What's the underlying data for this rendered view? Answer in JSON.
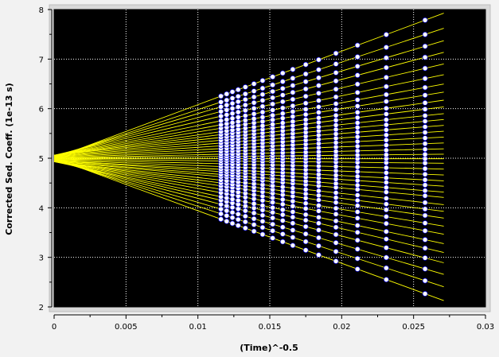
{
  "chart_data": {
    "type": "scatter",
    "xlabel": "(Time)^-0.5",
    "ylabel": "Corrected Sed. Coeff. (1e-13 s)",
    "xlim": [
      0,
      0.03
    ],
    "ylim": [
      2,
      8
    ],
    "x_ticks": [
      {
        "v": 0,
        "label": "0"
      },
      {
        "v": 0.005,
        "label": "0.005"
      },
      {
        "v": 0.01,
        "label": "0.01"
      },
      {
        "v": 0.015,
        "label": "0.015"
      },
      {
        "v": 0.02,
        "label": "0.02"
      },
      {
        "v": 0.025,
        "label": "0.025"
      },
      {
        "v": 0.03,
        "label": "0.03"
      }
    ],
    "y_ticks": [
      {
        "v": 2,
        "label": "2"
      },
      {
        "v": 3,
        "label": "3"
      },
      {
        "v": 4,
        "label": "4"
      },
      {
        "v": 5,
        "label": "5"
      },
      {
        "v": 6,
        "label": "6"
      },
      {
        "v": 7,
        "label": "7"
      },
      {
        "v": 8,
        "label": "8"
      }
    ],
    "grid": true,
    "background_color": "#000000",
    "line_color": "#ffff00",
    "point_fill_color": "#ffffff",
    "point_edge_color": "#0000ff",
    "scan_x": [
      0.0116,
      0.012,
      0.0124,
      0.0128,
      0.0133,
      0.0139,
      0.0145,
      0.0152,
      0.0159,
      0.0166,
      0.0175,
      0.0184,
      0.0196,
      0.0211,
      0.0231,
      0.0258
    ],
    "fit_x_end": 0.0271,
    "boundary_fractions": [
      {
        "intercept": 5.0,
        "slope": -106
      },
      {
        "intercept": 4.98,
        "slope": -95
      },
      {
        "intercept": 4.96,
        "slope": -85
      },
      {
        "intercept": 4.95,
        "slope": -76
      },
      {
        "intercept": 4.94,
        "slope": -68
      },
      {
        "intercept": 4.93,
        "slope": -61
      },
      {
        "intercept": 4.93,
        "slope": -54
      },
      {
        "intercept": 4.93,
        "slope": -48
      },
      {
        "intercept": 4.93,
        "slope": -42
      },
      {
        "intercept": 4.93,
        "slope": -37
      },
      {
        "intercept": 4.93,
        "slope": -32
      },
      {
        "intercept": 4.94,
        "slope": -27
      },
      {
        "intercept": 4.94,
        "slope": -23
      },
      {
        "intercept": 4.95,
        "slope": -19
      },
      {
        "intercept": 4.95,
        "slope": -15
      },
      {
        "intercept": 4.96,
        "slope": -11
      },
      {
        "intercept": 4.97,
        "slope": -7
      },
      {
        "intercept": 4.98,
        "slope": -3
      },
      {
        "intercept": 4.99,
        "slope": 0
      },
      {
        "intercept": 5.0,
        "slope": 3
      },
      {
        "intercept": 5.0,
        "slope": 7
      },
      {
        "intercept": 5.01,
        "slope": 11
      },
      {
        "intercept": 5.02,
        "slope": 15
      },
      {
        "intercept": 5.03,
        "slope": 19
      },
      {
        "intercept": 5.04,
        "slope": 23
      },
      {
        "intercept": 5.05,
        "slope": 27
      },
      {
        "intercept": 5.06,
        "slope": 31
      },
      {
        "intercept": 5.06,
        "slope": 36
      },
      {
        "intercept": 5.06,
        "slope": 41
      },
      {
        "intercept": 5.06,
        "slope": 47
      },
      {
        "intercept": 5.06,
        "slope": 53
      },
      {
        "intercept": 5.06,
        "slope": 60
      },
      {
        "intercept": 5.06,
        "slope": 68
      },
      {
        "intercept": 5.05,
        "slope": 77
      },
      {
        "intercept": 5.04,
        "slope": 86
      },
      {
        "intercept": 5.02,
        "slope": 96
      },
      {
        "intercept": 5.0,
        "slope": 108
      }
    ]
  }
}
